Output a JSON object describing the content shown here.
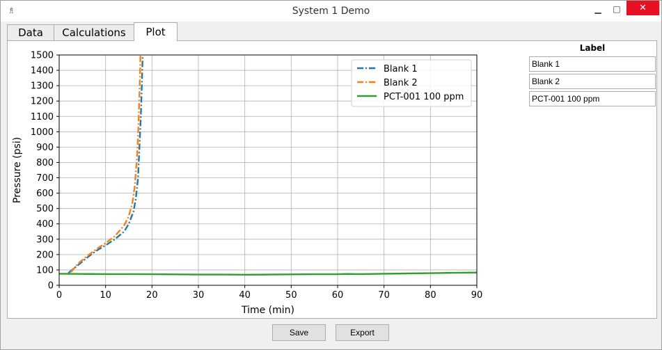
{
  "window": {
    "title": "System 1 Demo",
    "icon": "app-icon",
    "minimize": "▁",
    "maximize": "□",
    "close": "✕"
  },
  "tabs": [
    {
      "label": "Data"
    },
    {
      "label": "Calculations"
    },
    {
      "label": "Plot"
    }
  ],
  "active_tab": 2,
  "labels_panel": {
    "header": "Label",
    "items": [
      {
        "value": "Blank 1"
      },
      {
        "value": "Blank 2"
      },
      {
        "value": "PCT-001 100 ppm"
      }
    ]
  },
  "buttons": {
    "save": "Save",
    "export": "Export"
  },
  "chart_data": {
    "type": "line",
    "xlabel": "Time (min)",
    "ylabel": "Pressure (psi)",
    "xlim": [
      0,
      90
    ],
    "ylim": [
      0,
      1500
    ],
    "xticks": [
      0,
      10,
      20,
      30,
      40,
      50,
      60,
      70,
      80,
      90
    ],
    "yticks": [
      0,
      100,
      200,
      300,
      400,
      500,
      600,
      700,
      800,
      900,
      1000,
      1100,
      1200,
      1300,
      1400,
      1500
    ],
    "grid": true,
    "legend_placement": "upper-right",
    "series": [
      {
        "name": "Blank 1",
        "color": "#1f77b4",
        "style": "dashdot",
        "x": [
          2,
          4,
          6,
          8,
          10,
          12,
          14,
          15,
          16,
          16.5,
          17,
          17.3,
          17.6,
          17.8,
          17.9,
          18.0
        ],
        "y": [
          80,
          130,
          180,
          225,
          260,
          300,
          350,
          400,
          480,
          560,
          700,
          900,
          1100,
          1300,
          1400,
          1500
        ]
      },
      {
        "name": "Blank 2",
        "color": "#ff7f0e",
        "style": "dashdot",
        "x": [
          2.5,
          4,
          6,
          8,
          10,
          12,
          14,
          15,
          15.8,
          16.3,
          16.8,
          17.1,
          17.3,
          17.45,
          17.5
        ],
        "y": [
          85,
          140,
          190,
          235,
          275,
          320,
          390,
          450,
          540,
          650,
          850,
          1050,
          1250,
          1400,
          1500
        ]
      },
      {
        "name": "PCT-001 100 ppm",
        "color": "#2ca02c",
        "style": "solid",
        "x": [
          0,
          5,
          10,
          15,
          20,
          25,
          30,
          35,
          40,
          45,
          50,
          55,
          60,
          62,
          65,
          70,
          75,
          80,
          85,
          90
        ],
        "y": [
          75,
          74,
          73,
          73,
          72,
          71,
          70,
          70,
          69,
          70,
          71,
          72,
          72,
          74,
          73,
          75,
          77,
          79,
          81,
          83
        ]
      }
    ]
  }
}
